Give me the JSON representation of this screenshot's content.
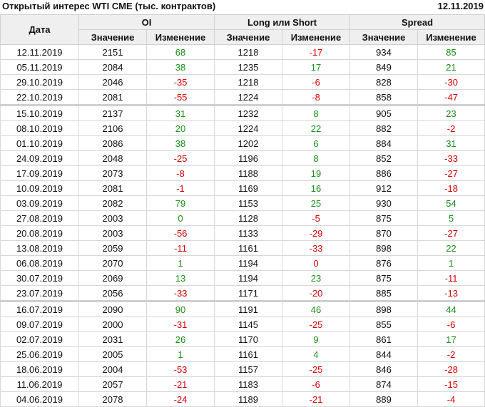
{
  "title": "Открытый интерес WTI CME (тыс. контрактов)",
  "date": "12.11.2019",
  "headers": {
    "date": "Дата",
    "oi": "OI",
    "ls": "Long или Short",
    "spread": "Spread",
    "value": "Значение",
    "change": "Изменение"
  },
  "colors": {
    "positive": "#1a8f1a",
    "negative": "#d40000"
  },
  "separators_after": [
    "22.10.2019",
    "23.07.2019"
  ],
  "rows": [
    {
      "d": "12.11.2019",
      "oi": "2151",
      "oic": "68",
      "oicol": "g",
      "ls": "1218",
      "lsc": "-17",
      "lscol": "r",
      "sp": "934",
      "spc": "85",
      "spcol": "g"
    },
    {
      "d": "05.11.2019",
      "oi": "2084",
      "oic": "38",
      "oicol": "g",
      "ls": "1235",
      "lsc": "17",
      "lscol": "g",
      "sp": "849",
      "spc": "21",
      "spcol": "g"
    },
    {
      "d": "29.10.2019",
      "oi": "2046",
      "oic": "-35",
      "oicol": "r",
      "ls": "1218",
      "lsc": "-6",
      "lscol": "r",
      "sp": "828",
      "spc": "-30",
      "spcol": "r"
    },
    {
      "d": "22.10.2019",
      "oi": "2081",
      "oic": "-55",
      "oicol": "r",
      "ls": "1224",
      "lsc": "-8",
      "lscol": "r",
      "sp": "858",
      "spc": "-47",
      "spcol": "r"
    },
    {
      "d": "15.10.2019",
      "oi": "2137",
      "oic": "31",
      "oicol": "g",
      "ls": "1232",
      "lsc": "8",
      "lscol": "g",
      "sp": "905",
      "spc": "23",
      "spcol": "g"
    },
    {
      "d": "08.10.2019",
      "oi": "2106",
      "oic": "20",
      "oicol": "g",
      "ls": "1224",
      "lsc": "22",
      "lscol": "g",
      "sp": "882",
      "spc": "-2",
      "spcol": "r"
    },
    {
      "d": "01.10.2019",
      "oi": "2086",
      "oic": "38",
      "oicol": "g",
      "ls": "1202",
      "lsc": "6",
      "lscol": "g",
      "sp": "884",
      "spc": "31",
      "spcol": "g"
    },
    {
      "d": "24.09.2019",
      "oi": "2048",
      "oic": "-25",
      "oicol": "r",
      "ls": "1196",
      "lsc": "8",
      "lscol": "g",
      "sp": "852",
      "spc": "-33",
      "spcol": "r"
    },
    {
      "d": "17.09.2019",
      "oi": "2073",
      "oic": "-8",
      "oicol": "r",
      "ls": "1188",
      "lsc": "19",
      "lscol": "g",
      "sp": "886",
      "spc": "-27",
      "spcol": "r"
    },
    {
      "d": "10.09.2019",
      "oi": "2081",
      "oic": "-1",
      "oicol": "r",
      "ls": "1169",
      "lsc": "16",
      "lscol": "g",
      "sp": "912",
      "spc": "-18",
      "spcol": "r"
    },
    {
      "d": "03.09.2019",
      "oi": "2082",
      "oic": "79",
      "oicol": "g",
      "ls": "1153",
      "lsc": "25",
      "lscol": "g",
      "sp": "930",
      "spc": "54",
      "spcol": "g"
    },
    {
      "d": "27.08.2019",
      "oi": "2003",
      "oic": "0",
      "oicol": "g",
      "ls": "1128",
      "lsc": "-5",
      "lscol": "r",
      "sp": "875",
      "spc": "5",
      "spcol": "g"
    },
    {
      "d": "20.08.2019",
      "oi": "2003",
      "oic": "-56",
      "oicol": "r",
      "ls": "1133",
      "lsc": "-29",
      "lscol": "r",
      "sp": "870",
      "spc": "-27",
      "spcol": "r"
    },
    {
      "d": "13.08.2019",
      "oi": "2059",
      "oic": "-11",
      "oicol": "r",
      "ls": "1161",
      "lsc": "-33",
      "lscol": "r",
      "sp": "898",
      "spc": "22",
      "spcol": "g"
    },
    {
      "d": "06.08.2019",
      "oi": "2070",
      "oic": "1",
      "oicol": "g",
      "ls": "1194",
      "lsc": "0",
      "lscol": "r",
      "sp": "876",
      "spc": "1",
      "spcol": "g"
    },
    {
      "d": "30.07.2019",
      "oi": "2069",
      "oic": "13",
      "oicol": "g",
      "ls": "1194",
      "lsc": "23",
      "lscol": "g",
      "sp": "875",
      "spc": "-11",
      "spcol": "r"
    },
    {
      "d": "23.07.2019",
      "oi": "2056",
      "oic": "-33",
      "oicol": "r",
      "ls": "1171",
      "lsc": "-20",
      "lscol": "r",
      "sp": "885",
      "spc": "-13",
      "spcol": "r"
    },
    {
      "d": "16.07.2019",
      "oi": "2090",
      "oic": "90",
      "oicol": "g",
      "ls": "1191",
      "lsc": "46",
      "lscol": "g",
      "sp": "898",
      "spc": "44",
      "spcol": "g"
    },
    {
      "d": "09.07.2019",
      "oi": "2000",
      "oic": "-31",
      "oicol": "r",
      "ls": "1145",
      "lsc": "-25",
      "lscol": "r",
      "sp": "855",
      "spc": "-6",
      "spcol": "r"
    },
    {
      "d": "02.07.2019",
      "oi": "2031",
      "oic": "26",
      "oicol": "g",
      "ls": "1170",
      "lsc": "9",
      "lscol": "g",
      "sp": "861",
      "spc": "17",
      "spcol": "g"
    },
    {
      "d": "25.06.2019",
      "oi": "2005",
      "oic": "1",
      "oicol": "g",
      "ls": "1161",
      "lsc": "4",
      "lscol": "g",
      "sp": "844",
      "spc": "-2",
      "spcol": "r"
    },
    {
      "d": "18.06.2019",
      "oi": "2004",
      "oic": "-53",
      "oicol": "r",
      "ls": "1157",
      "lsc": "-25",
      "lscol": "r",
      "sp": "846",
      "spc": "-28",
      "spcol": "r"
    },
    {
      "d": "11.06.2019",
      "oi": "2057",
      "oic": "-21",
      "oicol": "r",
      "ls": "1183",
      "lsc": "-6",
      "lscol": "r",
      "sp": "874",
      "spc": "-15",
      "spcol": "r"
    },
    {
      "d": "04.06.2019",
      "oi": "2078",
      "oic": "-24",
      "oicol": "r",
      "ls": "1189",
      "lsc": "-21",
      "lscol": "r",
      "sp": "889",
      "spc": "-4",
      "spcol": "r"
    }
  ]
}
